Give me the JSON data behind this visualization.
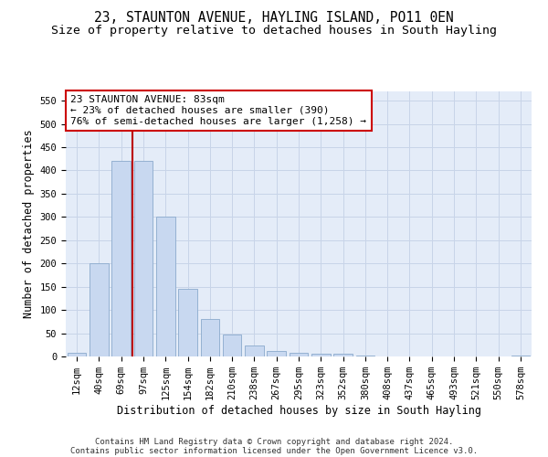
{
  "title": "23, STAUNTON AVENUE, HAYLING ISLAND, PO11 0EN",
  "subtitle": "Size of property relative to detached houses in South Hayling",
  "xlabel": "Distribution of detached houses by size in South Hayling",
  "ylabel": "Number of detached properties",
  "categories": [
    "12sqm",
    "40sqm",
    "69sqm",
    "97sqm",
    "125sqm",
    "154sqm",
    "182sqm",
    "210sqm",
    "238sqm",
    "267sqm",
    "295sqm",
    "323sqm",
    "352sqm",
    "380sqm",
    "408sqm",
    "437sqm",
    "465sqm",
    "493sqm",
    "521sqm",
    "550sqm",
    "578sqm"
  ],
  "values": [
    8,
    200,
    420,
    420,
    300,
    145,
    80,
    48,
    23,
    11,
    8,
    5,
    5,
    1,
    0,
    0,
    0,
    0,
    0,
    0,
    1
  ],
  "bar_color": "#c8d8f0",
  "bar_edge_color": "#8aaacc",
  "vline_x_index": 2.5,
  "vline_color": "#bb0000",
  "annotation_text": "23 STAUNTON AVENUE: 83sqm\n← 23% of detached houses are smaller (390)\n76% of semi-detached houses are larger (1,258) →",
  "annotation_box_color": "#ffffff",
  "annotation_box_edge_color": "#cc0000",
  "ylim": [
    0,
    570
  ],
  "yticks": [
    0,
    50,
    100,
    150,
    200,
    250,
    300,
    350,
    400,
    450,
    500,
    550
  ],
  "grid_color": "#c8d4e8",
  "background_color": "#e4ecf8",
  "footer_line1": "Contains HM Land Registry data © Crown copyright and database right 2024.",
  "footer_line2": "Contains public sector information licensed under the Open Government Licence v3.0.",
  "title_fontsize": 10.5,
  "subtitle_fontsize": 9.5,
  "xlabel_fontsize": 8.5,
  "ylabel_fontsize": 8.5,
  "tick_fontsize": 7.5,
  "annotation_fontsize": 8,
  "footer_fontsize": 6.5
}
